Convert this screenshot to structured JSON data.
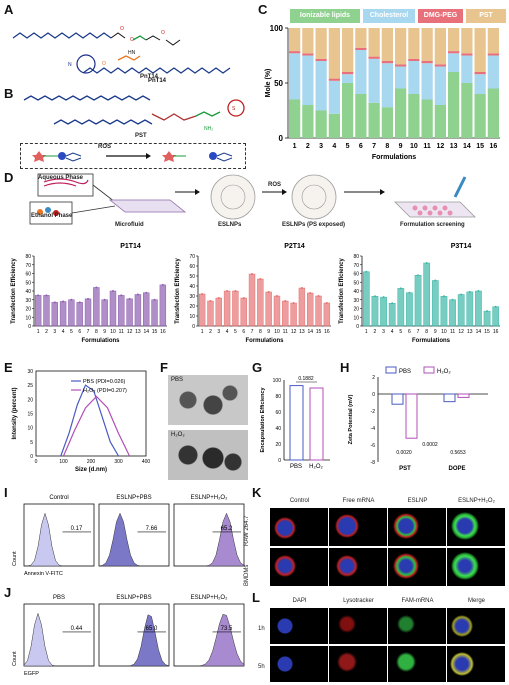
{
  "panels": {
    "A": {
      "letter": "A",
      "compound": "PnT14"
    },
    "B": {
      "letter": "B",
      "compound": "PST",
      "ros_label": "ROS"
    },
    "C": {
      "letter": "C"
    },
    "D": {
      "letter": "D",
      "aqueous": "Aqueous Phase",
      "ethanol": "Ethanol Phase",
      "microfluid": "Microfluid",
      "eslnps": "ESLNPs",
      "ros": "ROS",
      "eslnps_exposed": "ESLNPs (PS exposed)",
      "screening": "Formulation screening"
    },
    "E": {
      "letter": "E"
    },
    "F": {
      "letter": "F",
      "pbs": "PBS",
      "h2o2": "H₂O₂"
    },
    "G": {
      "letter": "G"
    },
    "H": {
      "letter": "H"
    },
    "I": {
      "letter": "I"
    },
    "J": {
      "letter": "J"
    },
    "K": {
      "letter": "K",
      "cols": [
        "Control",
        "Free mRNA",
        "ESLNP",
        "ESLNP+H₂O₂"
      ],
      "rows": [
        "RAW 264.7",
        "BMDMs"
      ]
    },
    "L": {
      "letter": "L",
      "cols": [
        "DAPI",
        "Lysotracker",
        "FAM-mRNA",
        "Merge"
      ],
      "rows": [
        "1h",
        "5h"
      ]
    }
  },
  "colors": {
    "ionizable": "#8fd18f",
    "cholesterol": "#a8d8f0",
    "dmgpeg": "#e8707a",
    "pst": "#e8c48f",
    "p1": "#8e5fb0",
    "p2": "#e57373",
    "p3": "#3fb8a8",
    "pbs_blue": "#4a5bc4",
    "h2o2_purple": "#b04fb8"
  },
  "chart_data": [
    {
      "id": "C",
      "type": "bar",
      "stacked": true,
      "categories": [
        "1",
        "2",
        "3",
        "4",
        "5",
        "6",
        "7",
        "8",
        "9",
        "10",
        "11",
        "12",
        "13",
        "14",
        "15",
        "16"
      ],
      "legend": [
        "Ionizable lipids",
        "Cholesterol",
        "DMG-PEG",
        "PST"
      ],
      "series": [
        {
          "name": "Ionizable lipids",
          "values": [
            35,
            30,
            25,
            22,
            50,
            40,
            32,
            28,
            45,
            40,
            35,
            30,
            60,
            50,
            40,
            45
          ]
        },
        {
          "name": "Cholesterol",
          "values": [
            42,
            45,
            45,
            30,
            8,
            40,
            40,
            40,
            20,
            30,
            33,
            35,
            17,
            25,
            18,
            30
          ]
        },
        {
          "name": "DMG-PEG",
          "values": [
            2,
            2,
            2,
            2,
            2,
            2,
            2,
            2,
            2,
            2,
            2,
            2,
            2,
            2,
            2,
            2
          ]
        },
        {
          "name": "PST",
          "values": [
            21,
            23,
            28,
            46,
            40,
            18,
            26,
            30,
            33,
            28,
            30,
            33,
            21,
            23,
            40,
            23
          ]
        }
      ],
      "xlabel": "Formulations",
      "ylabel": "Mole (%)",
      "ylim": [
        0,
        100
      ],
      "yticks": [
        0,
        50,
        100
      ]
    },
    {
      "id": "D1",
      "type": "bar",
      "title": "P1T14",
      "categories": [
        "1",
        "2",
        "3",
        "4",
        "5",
        "6",
        "7",
        "8",
        "9",
        "10",
        "11",
        "12",
        "13",
        "14",
        "15",
        "16"
      ],
      "values": [
        35,
        35,
        27,
        28,
        30,
        27,
        31,
        44,
        30,
        40,
        35,
        31,
        36,
        38,
        30,
        47
      ],
      "xlabel": "Formulations",
      "ylabel": "Transfection Efficiency",
      "ylim": [
        0,
        80
      ],
      "yticks": [
        0,
        10,
        20,
        30,
        40,
        50,
        60,
        70,
        80
      ]
    },
    {
      "id": "D2",
      "type": "bar",
      "title": "P2T14",
      "categories": [
        "1",
        "2",
        "3",
        "4",
        "5",
        "6",
        "7",
        "8",
        "9",
        "10",
        "11",
        "12",
        "13",
        "14",
        "15",
        "16"
      ],
      "values": [
        32,
        25,
        28,
        35,
        35,
        28,
        52,
        47,
        34,
        30,
        25,
        23,
        38,
        33,
        30,
        23
      ],
      "xlabel": "Formulations",
      "ylabel": "Transfection Efficiency",
      "ylim": [
        0,
        70
      ],
      "yticks": [
        0,
        10,
        20,
        30,
        40,
        50,
        60,
        70
      ]
    },
    {
      "id": "D3",
      "type": "bar",
      "title": "P3T14",
      "categories": [
        "1",
        "2",
        "3",
        "4",
        "5",
        "6",
        "7",
        "8",
        "9",
        "10",
        "11",
        "12",
        "13",
        "14",
        "15",
        "16"
      ],
      "values": [
        62,
        34,
        33,
        26,
        43,
        38,
        58,
        72,
        52,
        34,
        30,
        36,
        39,
        40,
        17,
        22
      ],
      "xlabel": "Formulations",
      "ylabel": "Transfection Efficiency",
      "ylim": [
        0,
        80
      ],
      "yticks": [
        0,
        10,
        20,
        30,
        40,
        50,
        60,
        70,
        80
      ]
    },
    {
      "id": "E",
      "type": "line",
      "series": [
        {
          "name": "PBS (PDI=0.026)",
          "x": [
            90,
            120,
            150,
            180,
            210,
            240,
            270,
            300
          ],
          "y": [
            0,
            8,
            18,
            25,
            23,
            14,
            5,
            0
          ]
        },
        {
          "name": "H₂O₂ (PDI=0.207)",
          "x": [
            100,
            140,
            180,
            220,
            260,
            300,
            340
          ],
          "y": [
            0,
            9,
            17,
            21,
            17,
            8,
            0
          ]
        }
      ],
      "xlabel": "Size (d.nm)",
      "ylabel": "Intensity (percent)",
      "xlim": [
        0,
        400
      ],
      "ylim": [
        0,
        30
      ],
      "xticks": [
        0,
        100,
        200,
        300,
        400
      ],
      "yticks": [
        0,
        5,
        10,
        15,
        20,
        25,
        30
      ]
    },
    {
      "id": "G",
      "type": "bar",
      "categories": [
        "PBS",
        "H₂O₂"
      ],
      "values": [
        93,
        90
      ],
      "ylabel": "Encapsulation Efficiency",
      "ylim": [
        0,
        100
      ],
      "yticks": [
        0,
        20,
        40,
        60,
        80,
        100
      ],
      "annotation": "0.1882"
    },
    {
      "id": "H",
      "type": "bar",
      "categories": [
        "PST",
        "DOPE"
      ],
      "legend": [
        "PBS",
        "H₂O₂"
      ],
      "series": [
        {
          "name": "PBS",
          "values": [
            -1.2,
            -0.9
          ]
        },
        {
          "name": "H₂O₂",
          "values": [
            -5.2,
            -0.4
          ]
        }
      ],
      "ylabel": "Zeta Potential (mV)",
      "ylim": [
        -8,
        2
      ],
      "yticks": [
        -8,
        -6,
        -4,
        -2,
        0,
        2
      ],
      "annotations": [
        "0.0020",
        "0.0002",
        "0.5653"
      ]
    },
    {
      "id": "I",
      "type": "area",
      "panels": [
        "Control",
        "ESLNP+PBS",
        "ESLNP+H₂O₂"
      ],
      "gate_values": [
        "0.17",
        "7.66",
        "65.2"
      ],
      "xlabel": "Annexin V-FITC",
      "ylabel": "Count"
    },
    {
      "id": "J",
      "type": "area",
      "panels": [
        "PBS",
        "ESLNP+PBS",
        "ESLNP+H₂O₂"
      ],
      "gate_values": [
        "0.44",
        "65.0",
        "73.5"
      ],
      "xlabel": "EGFP",
      "ylabel": "Count"
    }
  ]
}
